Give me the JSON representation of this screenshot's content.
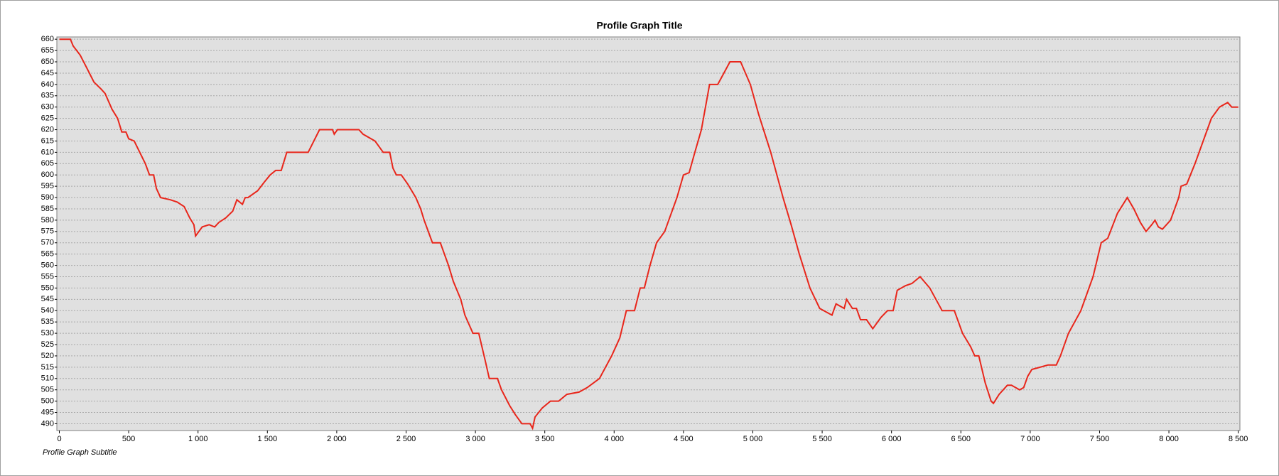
{
  "chart_data": {
    "type": "line",
    "title": "Profile Graph Title",
    "subtitle": "Profile Graph Subtitle",
    "x": [
      0,
      80,
      100,
      150,
      200,
      250,
      300,
      330,
      380,
      420,
      450,
      480,
      500,
      540,
      580,
      620,
      650,
      680,
      700,
      730,
      800,
      850,
      900,
      940,
      970,
      982,
      1030,
      1080,
      1120,
      1150,
      1200,
      1250,
      1280,
      1320,
      1340,
      1360,
      1430,
      1480,
      1520,
      1560,
      1600,
      1640,
      1794,
      1876,
      1970,
      1982,
      2005,
      2160,
      2190,
      2276,
      2335,
      2382,
      2405,
      2430,
      2465,
      2512,
      2570,
      2605,
      2630,
      2690,
      2747,
      2806,
      2840,
      2894,
      2924,
      2982,
      3024,
      3070,
      3100,
      3159,
      3188,
      3247,
      3288,
      3335,
      3394,
      3412,
      3430,
      3482,
      3541,
      3600,
      3659,
      3747,
      3806,
      3894,
      3982,
      4041,
      4088,
      4147,
      4188,
      4218,
      4259,
      4306,
      4365,
      4394,
      4453,
      4500,
      4541,
      4582,
      4629,
      4688,
      4747,
      4835,
      4912,
      4982,
      5041,
      5129,
      5218,
      5276,
      5335,
      5412,
      5482,
      5571,
      5600,
      5659,
      5676,
      5718,
      5747,
      5776,
      5820,
      5865,
      5924,
      5971,
      6012,
      6041,
      6100,
      6147,
      6206,
      6276,
      6365,
      6453,
      6512,
      6571,
      6600,
      6629,
      6676,
      6718,
      6735,
      6776,
      6835,
      6865,
      6924,
      6953,
      6982,
      7012,
      7071,
      7129,
      7188,
      7218,
      7276,
      7365,
      7453,
      7512,
      7559,
      7629,
      7700,
      7747,
      7794,
      7835,
      7876,
      7900,
      7924,
      7953,
      8012,
      8071,
      8088,
      8129,
      8188,
      8247,
      8306,
      8365,
      8424,
      8453,
      8500
    ],
    "series": [
      {
        "color": "#e8261b",
        "values": [
          660,
          660,
          657,
          653,
          647,
          641,
          638,
          636,
          629,
          625,
          619,
          619,
          616,
          615,
          610,
          605,
          600,
          600,
          594,
          590,
          589,
          588,
          586,
          581,
          578,
          573,
          577,
          578,
          577,
          579,
          581,
          584,
          589,
          587,
          590,
          590,
          593,
          597,
          600,
          602,
          602,
          610,
          610,
          620,
          620,
          618,
          620,
          620,
          618,
          615,
          610,
          610,
          603,
          600,
          600,
          596,
          590,
          585,
          580,
          570,
          570,
          560,
          553,
          545,
          538,
          530,
          530,
          518,
          510,
          510,
          505,
          498,
          494,
          490,
          490,
          488,
          493,
          497,
          500,
          500,
          503,
          504,
          506,
          510,
          520,
          528,
          540,
          540,
          550,
          550,
          560,
          570,
          575,
          580,
          590,
          600,
          601,
          610,
          620,
          640,
          640,
          650,
          650,
          640,
          627,
          610,
          590,
          578,
          565,
          550,
          541,
          538,
          543,
          541,
          545,
          541,
          541,
          536,
          536,
          532,
          537,
          540,
          540,
          549,
          551,
          552,
          555,
          550,
          540,
          540,
          530,
          524,
          520,
          520,
          508,
          500,
          499,
          503,
          507,
          507,
          505,
          506,
          511,
          514,
          515,
          516,
          516,
          520,
          530,
          540,
          555,
          570,
          572,
          583,
          590,
          585,
          579,
          575,
          578,
          580,
          577,
          576,
          580,
          590,
          595,
          596,
          605,
          615,
          625,
          630,
          632,
          630,
          630
        ]
      }
    ],
    "xlim": [
      -18,
      8512
    ],
    "ylim": [
      487,
      661
    ],
    "xticks": [
      0,
      500,
      {
        "value": 1000,
        "label": "1 000"
      },
      {
        "value": 1500,
        "label": "1 500"
      },
      {
        "value": 2000,
        "label": "2 000"
      },
      {
        "value": 2500,
        "label": "2 500"
      },
      {
        "value": 3000,
        "label": "3 000"
      },
      {
        "value": 3500,
        "label": "3 500"
      },
      {
        "value": 4000,
        "label": "4 000"
      },
      {
        "value": 4500,
        "label": "4 500"
      },
      {
        "value": 5000,
        "label": "5 000"
      },
      {
        "value": 5500,
        "label": "5 500"
      },
      {
        "value": 6000,
        "label": "6 000"
      },
      {
        "value": 6500,
        "label": "6 500"
      },
      {
        "value": 7000,
        "label": "7 000"
      },
      {
        "value": 7500,
        "label": "7 500"
      },
      {
        "value": 8000,
        "label": "8 000"
      },
      {
        "value": 8500,
        "label": "8 500"
      }
    ],
    "yticks": [
      490,
      495,
      500,
      505,
      510,
      515,
      520,
      525,
      530,
      535,
      540,
      545,
      550,
      555,
      560,
      565,
      570,
      575,
      580,
      585,
      590,
      595,
      600,
      605,
      610,
      615,
      620,
      625,
      630,
      635,
      640,
      645,
      650,
      655,
      660
    ],
    "grid": true
  }
}
